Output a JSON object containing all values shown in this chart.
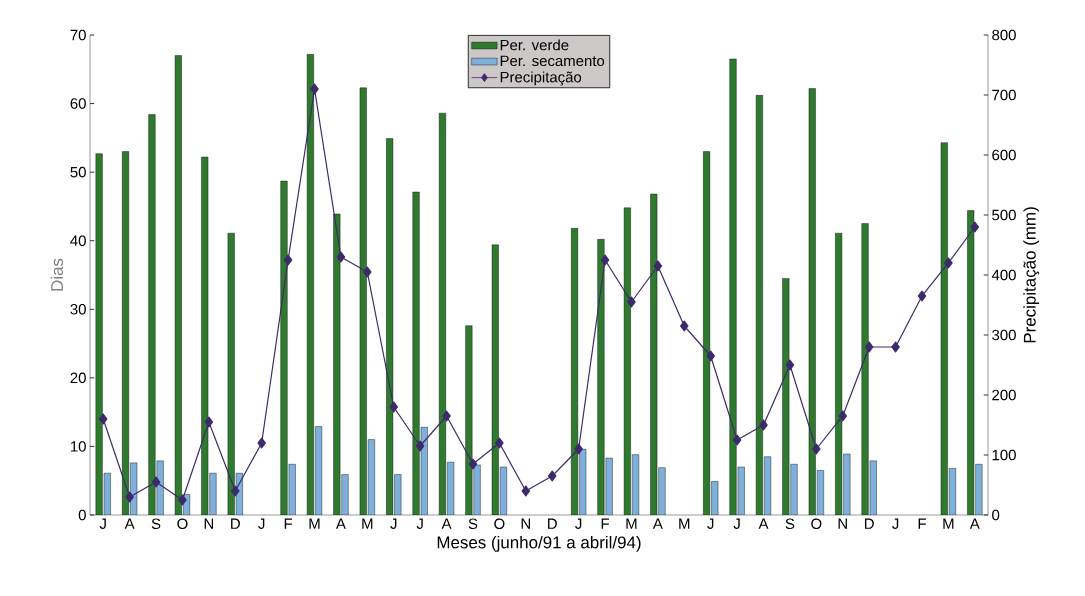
{
  "chart_data": {
    "type": "bar",
    "xlabel": "Meses (junho/91 a abril/94)",
    "ylabel": "Dias",
    "y2label": "Precipitação (mm)",
    "categories": [
      "J",
      "A",
      "S",
      "O",
      "N",
      "D",
      "J",
      "F",
      "M",
      "A",
      "M",
      "J",
      "J",
      "A",
      "S",
      "O",
      "N",
      "D",
      "J",
      "F",
      "M",
      "A",
      "M",
      "J",
      "J",
      "A",
      "S",
      "O",
      "N",
      "D",
      "J",
      "F",
      "M",
      "A"
    ],
    "series": [
      {
        "name": "Per. verde",
        "color": "#2f7a2f",
        "values": [
          52.7,
          53,
          58.4,
          67,
          52.2,
          41.1,
          null,
          48.7,
          67.2,
          43.9,
          62.3,
          54.9,
          47.1,
          58.6,
          27.6,
          39.4,
          null,
          null,
          41.8,
          40.2,
          44.8,
          46.8,
          null,
          53,
          66.5,
          61.2,
          34.5,
          62.2,
          41.1,
          42.5,
          null,
          null,
          54.3,
          44.4
        ]
      },
      {
        "name": "Per. secamento",
        "color": "#7fb0dc",
        "values": [
          6.1,
          7.6,
          7.9,
          3,
          6.1,
          6.1,
          null,
          7.4,
          12.9,
          5.9,
          11,
          5.9,
          12.8,
          7.7,
          7.3,
          7,
          null,
          null,
          9.6,
          8.3,
          8.8,
          6.9,
          null,
          4.9,
          7,
          8.5,
          7.4,
          6.5,
          8.9,
          7.9,
          null,
          null,
          6.8,
          7.4
        ]
      },
      {
        "name": "Precipitação",
        "type": "line",
        "axis": "y2",
        "color": "#3d2a6b",
        "values": [
          160,
          30,
          55,
          25,
          155,
          40,
          120,
          425,
          710,
          430,
          405,
          180,
          115,
          165,
          85,
          120,
          40,
          65,
          110,
          425,
          355,
          415,
          315,
          265,
          125,
          150,
          250,
          110,
          165,
          280,
          280,
          365,
          420,
          480
        ]
      }
    ],
    "ylim": [
      0,
      70
    ],
    "yticks": [
      0,
      10,
      20,
      30,
      40,
      50,
      60,
      70
    ],
    "y2lim": [
      0,
      800
    ],
    "y2ticks": [
      0,
      100,
      200,
      300,
      400,
      500,
      600,
      700,
      800
    ],
    "marker": "diamond",
    "line_style": "solid",
    "legend": "top"
  }
}
